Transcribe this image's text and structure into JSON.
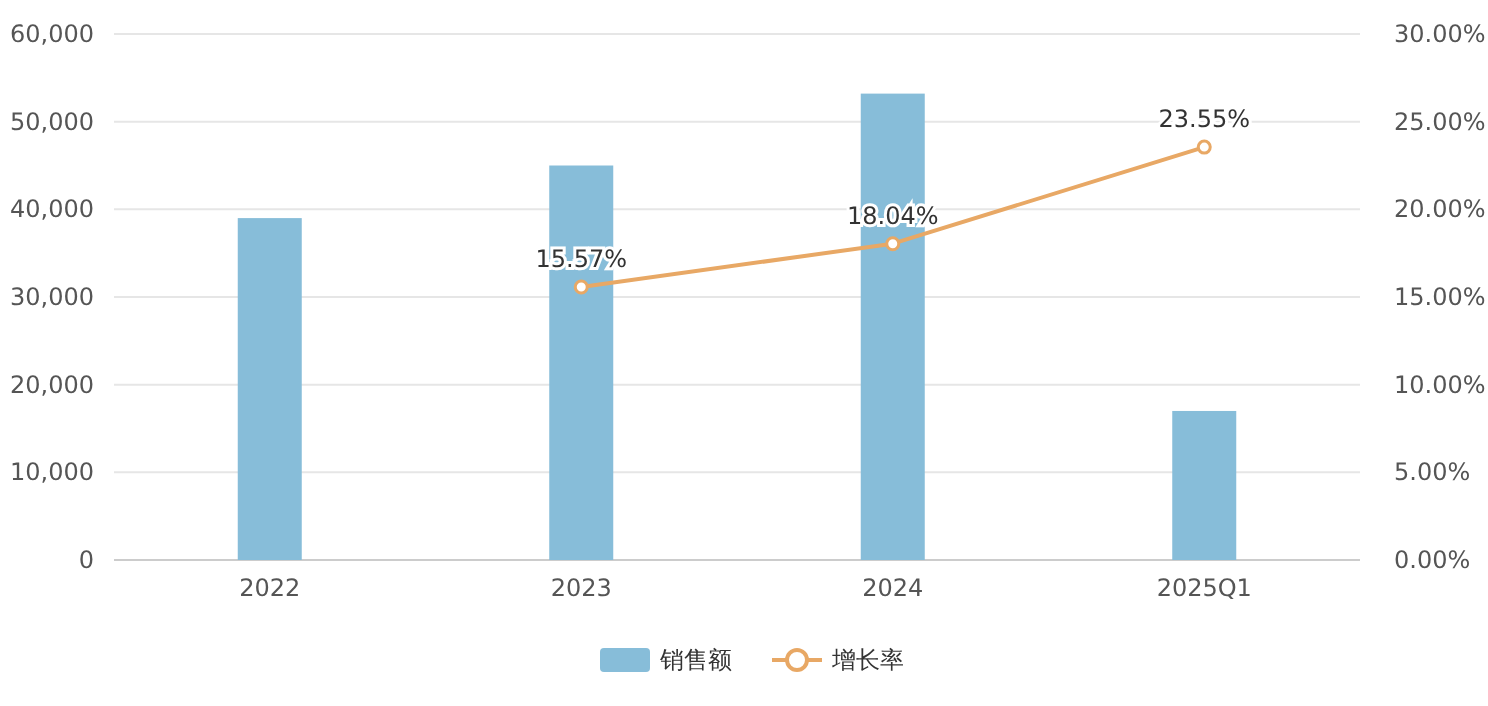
{
  "chart_data": {
    "type": "bar",
    "categories": [
      "2022",
      "2023",
      "2024",
      "2025Q1"
    ],
    "series": [
      {
        "name": "销售额",
        "color": "#87bdd9",
        "values": [
          39000,
          45000,
          53200,
          17000
        ]
      },
      {
        "name": "增长率",
        "type": "line",
        "axis": "y2",
        "color": "#e8a865",
        "marker": "circle",
        "values": [
          null,
          15.57,
          18.04,
          23.55
        ],
        "value_labels": [
          null,
          "15.57%",
          "18.04%",
          "23.55%"
        ]
      }
    ],
    "ylim": [
      0,
      60000
    ],
    "yticks": [
      {
        "value": 0,
        "label": "0"
      },
      {
        "value": 10000,
        "label": "10,000"
      },
      {
        "value": 20000,
        "label": "20,000"
      },
      {
        "value": 30000,
        "label": "30,000"
      },
      {
        "value": 40000,
        "label": "40,000"
      },
      {
        "value": 50000,
        "label": "50,000"
      },
      {
        "value": 60000,
        "label": "60,000"
      }
    ],
    "y2lim": [
      0,
      30
    ],
    "y2ticks": [
      {
        "value": 0,
        "label": "0.00%"
      },
      {
        "value": 5,
        "label": "5.00%"
      },
      {
        "value": 10,
        "label": "10.00%"
      },
      {
        "value": 15,
        "label": "15.00%"
      },
      {
        "value": 20,
        "label": "20.00%"
      },
      {
        "value": 25,
        "label": "25.00%"
      },
      {
        "value": 30,
        "label": "30.00%"
      }
    ],
    "grid": "y",
    "legend": "bottom"
  }
}
